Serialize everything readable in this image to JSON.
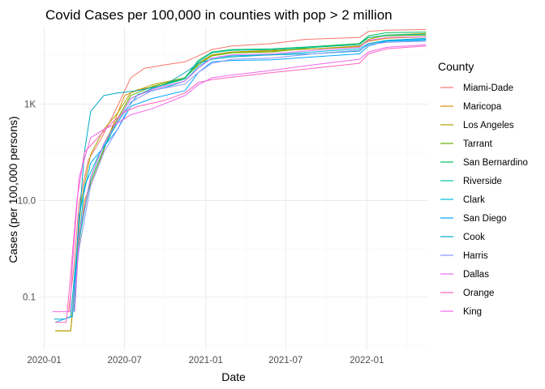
{
  "chart_data": {
    "type": "line",
    "title": "Covid Cases per 100,000 in counties with pop > 2 million",
    "xlabel": "Date",
    "ylabel": "Cases (per 100,000 persons)",
    "x_scale": "date",
    "y_scale": "log10",
    "xlim": [
      "2019-12-20",
      "2022-05-20"
    ],
    "ylim": [
      0.008,
      40000
    ],
    "x_ticks": [
      {
        "value": "2020-01-01",
        "label": "2020-01"
      },
      {
        "value": "2020-07-01",
        "label": "2020-07"
      },
      {
        "value": "2021-01-01",
        "label": "2021-01"
      },
      {
        "value": "2021-07-01",
        "label": "2021-07"
      },
      {
        "value": "2022-01-01",
        "label": "2022-01"
      }
    ],
    "y_ticks": [
      {
        "value": 0.1,
        "label": "0.1"
      },
      {
        "value": 10,
        "label": "10.0"
      },
      {
        "value": 1000,
        "label": "1K"
      }
    ],
    "grid": true,
    "legend": {
      "title": "County",
      "position": "right"
    },
    "series": [
      {
        "name": "Miami-Dade",
        "color": "#F8766D",
        "start": {
          "date": "2020-02-25",
          "value": 0.05
        },
        "points": [
          [
            "2020-03-08",
            0.4
          ],
          [
            "2020-03-20",
            9
          ],
          [
            "2020-04-10",
            70
          ],
          [
            "2020-05-10",
            200
          ],
          [
            "2020-06-15",
            900
          ],
          [
            "2020-07-15",
            3500
          ],
          [
            "2020-08-15",
            5500
          ],
          [
            "2020-10-01",
            6500
          ],
          [
            "2020-11-15",
            7500
          ],
          [
            "2020-12-15",
            10000
          ],
          [
            "2021-01-15",
            13500
          ],
          [
            "2021-03-01",
            16000
          ],
          [
            "2021-06-01",
            18000
          ],
          [
            "2021-08-15",
            22000
          ],
          [
            "2021-12-15",
            24000
          ],
          [
            "2022-01-05",
            32000
          ],
          [
            "2022-02-15",
            34000
          ],
          [
            "2022-05-15",
            35000
          ]
        ]
      },
      {
        "name": "Maricopa",
        "color": "#DB8E00",
        "start": {
          "date": "2020-01-26",
          "value": 0.02
        },
        "points": [
          [
            "2020-03-01",
            0.02
          ],
          [
            "2020-03-15",
            0.5
          ],
          [
            "2020-04-01",
            10
          ],
          [
            "2020-05-01",
            50
          ],
          [
            "2020-06-01",
            300
          ],
          [
            "2020-07-01",
            1500
          ],
          [
            "2020-08-01",
            2000
          ],
          [
            "2020-10-01",
            2500
          ],
          [
            "2020-11-15",
            3500
          ],
          [
            "2020-12-15",
            7000
          ],
          [
            "2021-01-15",
            10000
          ],
          [
            "2021-03-01",
            12000
          ],
          [
            "2021-06-01",
            13000
          ],
          [
            "2021-09-01",
            14000
          ],
          [
            "2021-12-15",
            16000
          ],
          [
            "2022-01-05",
            20000
          ],
          [
            "2022-02-15",
            23000
          ],
          [
            "2022-05-15",
            25000
          ]
        ]
      },
      {
        "name": "Los Angeles",
        "color": "#AEA200",
        "start": {
          "date": "2020-01-26",
          "value": 0.02
        },
        "points": [
          [
            "2020-03-01",
            0.02
          ],
          [
            "2020-03-10",
            0.2
          ],
          [
            "2020-03-25",
            10
          ],
          [
            "2020-04-15",
            90
          ],
          [
            "2020-05-15",
            300
          ],
          [
            "2020-06-15",
            650
          ],
          [
            "2020-07-15",
            1700
          ],
          [
            "2020-09-01",
            2500
          ],
          [
            "2020-11-15",
            3500
          ],
          [
            "2020-12-15",
            7000
          ],
          [
            "2021-01-15",
            10500
          ],
          [
            "2021-03-01",
            12000
          ],
          [
            "2021-06-01",
            12500
          ],
          [
            "2021-09-01",
            14000
          ],
          [
            "2021-12-15",
            15500
          ],
          [
            "2022-01-05",
            22000
          ],
          [
            "2022-02-15",
            27000
          ],
          [
            "2022-05-15",
            29000
          ]
        ]
      },
      {
        "name": "Tarrant",
        "color": "#64B200",
        "start": {
          "date": "2020-03-10",
          "value": 0.1
        },
        "points": [
          [
            "2020-03-20",
            2
          ],
          [
            "2020-04-15",
            30
          ],
          [
            "2020-05-15",
            150
          ],
          [
            "2020-06-15",
            500
          ],
          [
            "2020-07-15",
            1500
          ],
          [
            "2020-09-01",
            2300
          ],
          [
            "2020-11-15",
            3500
          ],
          [
            "2020-12-15",
            6500
          ],
          [
            "2021-01-15",
            10000
          ],
          [
            "2021-03-01",
            11500
          ],
          [
            "2021-06-01",
            12000
          ],
          [
            "2021-09-01",
            15000
          ],
          [
            "2021-12-15",
            18000
          ],
          [
            "2022-01-05",
            24000
          ],
          [
            "2022-02-15",
            26000
          ],
          [
            "2022-05-15",
            27000
          ]
        ]
      },
      {
        "name": "San Bernardino",
        "color": "#00BD5C",
        "start": {
          "date": "2020-03-12",
          "value": 0.1
        },
        "points": [
          [
            "2020-03-20",
            2
          ],
          [
            "2020-04-15",
            25
          ],
          [
            "2020-05-15",
            120
          ],
          [
            "2020-06-15",
            450
          ],
          [
            "2020-07-15",
            1300
          ],
          [
            "2020-09-01",
            2100
          ],
          [
            "2020-11-15",
            3500
          ],
          [
            "2020-12-15",
            8000
          ],
          [
            "2021-01-15",
            12000
          ],
          [
            "2021-03-01",
            13500
          ],
          [
            "2021-06-01",
            14000
          ],
          [
            "2021-09-01",
            15500
          ],
          [
            "2021-12-15",
            18000
          ],
          [
            "2022-01-05",
            26000
          ],
          [
            "2022-02-15",
            30000
          ],
          [
            "2022-05-15",
            31000
          ]
        ]
      },
      {
        "name": "Riverside",
        "color": "#00C1A7",
        "start": {
          "date": "2020-03-08",
          "value": 0.05
        },
        "points": [
          [
            "2020-03-20",
            1.5
          ],
          [
            "2020-04-15",
            30
          ],
          [
            "2020-05-15",
            150
          ],
          [
            "2020-06-15",
            450
          ],
          [
            "2020-07-15",
            1300
          ],
          [
            "2020-09-01",
            2100
          ],
          [
            "2020-11-15",
            3300
          ],
          [
            "2020-12-15",
            7500
          ],
          [
            "2021-01-15",
            11500
          ],
          [
            "2021-03-01",
            13000
          ],
          [
            "2021-06-01",
            13500
          ],
          [
            "2021-09-01",
            15000
          ],
          [
            "2021-12-15",
            17000
          ],
          [
            "2022-01-05",
            24000
          ],
          [
            "2022-02-15",
            27000
          ],
          [
            "2022-05-15",
            28000
          ]
        ]
      },
      {
        "name": "Clark",
        "color": "#00BADE",
        "start": {
          "date": "2020-03-05",
          "value": 0.05
        },
        "points": [
          [
            "2020-03-15",
            0.5
          ],
          [
            "2020-04-01",
            20
          ],
          [
            "2020-05-01",
            80
          ],
          [
            "2020-06-01",
            250
          ],
          [
            "2020-07-01",
            700
          ],
          [
            "2020-08-01",
            1600
          ],
          [
            "2020-10-01",
            2200
          ],
          [
            "2020-11-15",
            3000
          ],
          [
            "2020-12-15",
            6000
          ],
          [
            "2021-01-15",
            9000
          ],
          [
            "2021-03-01",
            10000
          ],
          [
            "2021-06-01",
            10500
          ],
          [
            "2021-09-01",
            12000
          ],
          [
            "2021-12-15",
            14000
          ],
          [
            "2022-01-05",
            18000
          ],
          [
            "2022-02-15",
            20000
          ],
          [
            "2022-05-15",
            21000
          ]
        ]
      },
      {
        "name": "San Diego",
        "color": "#00A6FF",
        "start": {
          "date": "2020-01-26",
          "value": 0.03
        },
        "points": [
          [
            "2020-02-15",
            0.035
          ],
          [
            "2020-03-05",
            0.04
          ],
          [
            "2020-03-20",
            5
          ],
          [
            "2020-04-15",
            60
          ],
          [
            "2020-05-15",
            130
          ],
          [
            "2020-06-15",
            300
          ],
          [
            "2020-07-15",
            900
          ],
          [
            "2020-09-01",
            1300
          ],
          [
            "2020-11-15",
            1900
          ],
          [
            "2020-12-15",
            4500
          ],
          [
            "2021-01-15",
            7500
          ],
          [
            "2021-03-01",
            8000
          ],
          [
            "2021-06-01",
            8300
          ],
          [
            "2021-09-01",
            9500
          ],
          [
            "2021-12-15",
            11000
          ],
          [
            "2022-01-05",
            16000
          ],
          [
            "2022-02-15",
            20000
          ],
          [
            "2022-05-15",
            22000
          ]
        ]
      },
      {
        "name": "Cook",
        "color": "#00A9C8",
        "start": {
          "date": "2020-01-24",
          "value": 0.035
        },
        "points": [
          [
            "2020-02-15",
            0.035
          ],
          [
            "2020-03-01",
            0.04
          ],
          [
            "2020-03-15",
            1
          ],
          [
            "2020-04-01",
            100
          ],
          [
            "2020-04-15",
            700
          ],
          [
            "2020-05-15",
            1500
          ],
          [
            "2020-06-15",
            1700
          ],
          [
            "2020-08-01",
            1900
          ],
          [
            "2020-10-01",
            2500
          ],
          [
            "2020-11-15",
            4500
          ],
          [
            "2020-12-15",
            7000
          ],
          [
            "2021-01-15",
            8500
          ],
          [
            "2021-03-01",
            9500
          ],
          [
            "2021-06-01",
            10500
          ],
          [
            "2021-09-01",
            11000
          ],
          [
            "2021-12-15",
            12500
          ],
          [
            "2022-01-05",
            18000
          ],
          [
            "2022-02-15",
            21000
          ],
          [
            "2022-05-15",
            23000
          ]
        ]
      },
      {
        "name": "Harris",
        "color": "#8C94FF",
        "start": {
          "date": "2020-03-05",
          "value": 0.05
        },
        "points": [
          [
            "2020-03-20",
            1
          ],
          [
            "2020-04-15",
            20
          ],
          [
            "2020-05-15",
            100
          ],
          [
            "2020-06-15",
            300
          ],
          [
            "2020-07-15",
            1100
          ],
          [
            "2020-09-01",
            1900
          ],
          [
            "2020-11-15",
            2600
          ],
          [
            "2020-12-15",
            4500
          ],
          [
            "2021-01-15",
            7000
          ],
          [
            "2021-03-01",
            8500
          ],
          [
            "2021-06-01",
            9000
          ],
          [
            "2021-09-01",
            11000
          ],
          [
            "2021-12-15",
            13000
          ],
          [
            "2022-01-05",
            17000
          ],
          [
            "2022-02-15",
            19000
          ],
          [
            "2022-05-15",
            20000
          ]
        ]
      },
      {
        "name": "Dallas",
        "color": "#E76BF3",
        "start": {
          "date": "2020-03-10",
          "value": 0.05
        },
        "points": [
          [
            "2020-03-20",
            2
          ],
          [
            "2020-04-15",
            30
          ],
          [
            "2020-05-15",
            150
          ],
          [
            "2020-06-15",
            450
          ],
          [
            "2020-07-15",
            1300
          ],
          [
            "2020-09-01",
            2000
          ],
          [
            "2020-11-15",
            3000
          ],
          [
            "2020-12-15",
            5500
          ],
          [
            "2021-01-15",
            9000
          ],
          [
            "2021-03-01",
            10500
          ],
          [
            "2021-06-01",
            11000
          ],
          [
            "2021-09-01",
            13000
          ],
          [
            "2021-12-15",
            15000
          ],
          [
            "2022-01-05",
            21000
          ],
          [
            "2022-02-15",
            24000
          ],
          [
            "2022-05-15",
            25000
          ]
        ]
      },
      {
        "name": "Orange",
        "color": "#FF62BC",
        "start": {
          "date": "2020-01-26",
          "value": 0.03
        },
        "points": [
          [
            "2020-02-20",
            0.03
          ],
          [
            "2020-03-01",
            0.3
          ],
          [
            "2020-03-15",
            10
          ],
          [
            "2020-04-01",
            100
          ],
          [
            "2020-05-01",
            200
          ],
          [
            "2020-06-01",
            400
          ],
          [
            "2020-07-01",
            700
          ],
          [
            "2020-08-01",
            900
          ],
          [
            "2020-10-01",
            1200
          ],
          [
            "2020-11-15",
            1700
          ],
          [
            "2020-12-15",
            2800
          ],
          [
            "2021-01-15",
            3200
          ],
          [
            "2021-03-01",
            3600
          ],
          [
            "2021-06-01",
            4500
          ],
          [
            "2021-09-01",
            5500
          ],
          [
            "2021-12-15",
            7000
          ],
          [
            "2022-01-05",
            11000
          ],
          [
            "2022-02-15",
            14000
          ],
          [
            "2022-05-15",
            16000
          ]
        ]
      },
      {
        "name": "King",
        "color": "#F066E9",
        "start": {
          "date": "2020-01-20",
          "value": 0.05
        },
        "points": [
          [
            "2020-02-28",
            0.05
          ],
          [
            "2020-03-05",
            0.5
          ],
          [
            "2020-03-20",
            30
          ],
          [
            "2020-04-15",
            200
          ],
          [
            "2020-05-15",
            300
          ],
          [
            "2020-06-15",
            400
          ],
          [
            "2020-07-15",
            600
          ],
          [
            "2020-09-01",
            800
          ],
          [
            "2020-11-15",
            1500
          ],
          [
            "2020-12-15",
            2500
          ],
          [
            "2021-01-15",
            3500
          ],
          [
            "2021-03-01",
            4000
          ],
          [
            "2021-06-01",
            5000
          ],
          [
            "2021-09-01",
            6500
          ],
          [
            "2021-12-15",
            8500
          ],
          [
            "2022-01-05",
            12000
          ],
          [
            "2022-02-15",
            15000
          ],
          [
            "2022-05-15",
            17000
          ]
        ]
      }
    ]
  }
}
